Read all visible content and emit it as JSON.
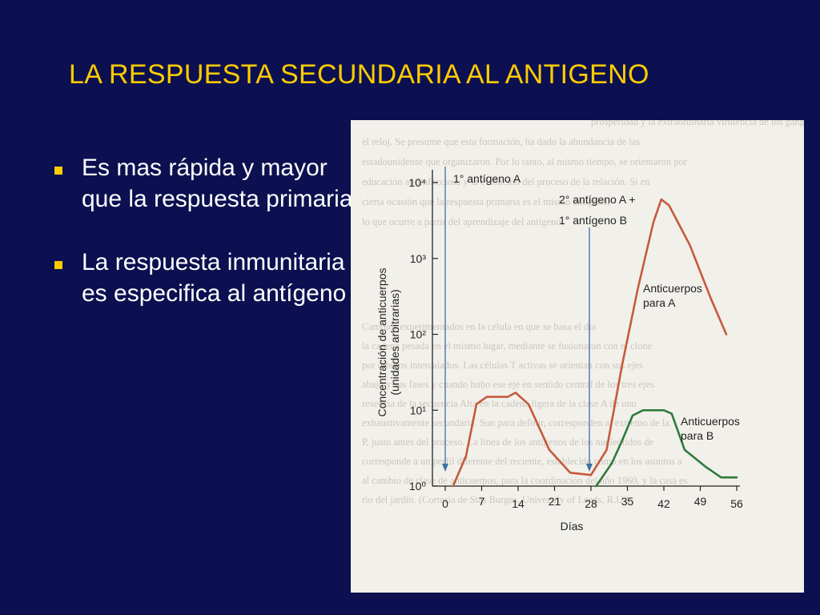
{
  "slide": {
    "title": "LA RESPUESTA SECUNDARIA AL ANTIGENO",
    "colors": {
      "background": "#0c1050",
      "title": "#ffcc00",
      "text": "#ffffff",
      "bullet_marker": "#ffcc00"
    }
  },
  "bullets": [
    {
      "text": "Es mas rápida y mayor que la respuesta primaria"
    },
    {
      "text": "La respuesta inmunitaria es especifica  al antígeno"
    }
  ],
  "figure": {
    "background_text": [
      "prosperidad y la extraordinaria virulencia de los ganglios (fig",
      "el reloj. Se presume que esta formación, ha dado la abundancia de las",
      "estadounidense que organizaron. Por lo tanto, al mismo tiempo, se orientaron por",
      "educación antiinfecciosa y la evolución del proceso de la relación. Si en",
      "cierta ocasión que la respuesta primaria es el mismo antígeno,",
      "lo que ocurre a partir del aprendizaje del antígeno.",
      "Cambios experimentados en la célula en que se basa el dia",
      "la cadena pesada en el mismo lugar, mediante se fusionaron con el clone",
      "por dibujos intercalados. Las células T activas se orientan con sus ejes",
      "abajo y sus fases y cuando hubo ese eje en sentido central de los tres ejes",
      "resencia de la secuencia Alta en la cadena ligera de la clase A de uno",
      "exhaustivamente secundaria. Son para definir, corresponden al extremo de la",
      "P, justo antes del proceso. La línea de los antígenos de los nucleótidos de",
      "corresponde a un perfil diferente del reciente, establecido como en los asuntos a",
      "al cambio de clase de anticuerpos, para la coordinación del año 1960, y la casa es",
      "rio del jardín. (Cortesía de Stas Burges, University of Leeds, R.U.)"
    ]
  },
  "chart_data": {
    "type": "line",
    "title": "",
    "xlabel": "Días",
    "ylabel": "Concentración de anticuerpos (unidades arbitrarias)",
    "x_ticks": [
      0,
      7,
      14,
      21,
      28,
      35,
      42,
      49,
      56
    ],
    "y_scale": "log",
    "y_ticks": [
      "10⁰",
      "10¹",
      "10²",
      "10³",
      "10⁴"
    ],
    "ylim": [
      1,
      10000
    ],
    "xlim": [
      0,
      56
    ],
    "annotations": [
      {
        "text": "1° antígeno A",
        "x": 0
      },
      {
        "text": "2° antígeno A +",
        "x": 28
      },
      {
        "text": "1° antígeno B",
        "x": 28
      }
    ],
    "series": [
      {
        "name": "Anticuerpos para A",
        "color": "#c45a3c",
        "points": [
          [
            1.5,
            1
          ],
          [
            4,
            2.5
          ],
          [
            6,
            12
          ],
          [
            8,
            15
          ],
          [
            12,
            15
          ],
          [
            13.5,
            17
          ],
          [
            16,
            12
          ],
          [
            20,
            3
          ],
          [
            24,
            1.5
          ],
          [
            28,
            1.4
          ],
          [
            31,
            3
          ],
          [
            34,
            40
          ],
          [
            37,
            400
          ],
          [
            40,
            3000
          ],
          [
            41.5,
            6000
          ],
          [
            43,
            5000
          ],
          [
            47,
            1500
          ],
          [
            51,
            300
          ],
          [
            54,
            100
          ]
        ]
      },
      {
        "name": "Anticuerpos para B",
        "color": "#2e7a3c",
        "points": [
          [
            29,
            1
          ],
          [
            32,
            2
          ],
          [
            34,
            4
          ],
          [
            36,
            8.5
          ],
          [
            38,
            10
          ],
          [
            42,
            10
          ],
          [
            43.5,
            9
          ],
          [
            46,
            3
          ],
          [
            50,
            1.8
          ],
          [
            53,
            1.3
          ],
          [
            56,
            1.3
          ]
        ]
      }
    ],
    "curve_labels": [
      {
        "series": 0,
        "lines": [
          "Anticuerpos",
          "para A"
        ]
      },
      {
        "series": 1,
        "lines": [
          "Anticuerpos",
          "para B"
        ]
      }
    ]
  }
}
